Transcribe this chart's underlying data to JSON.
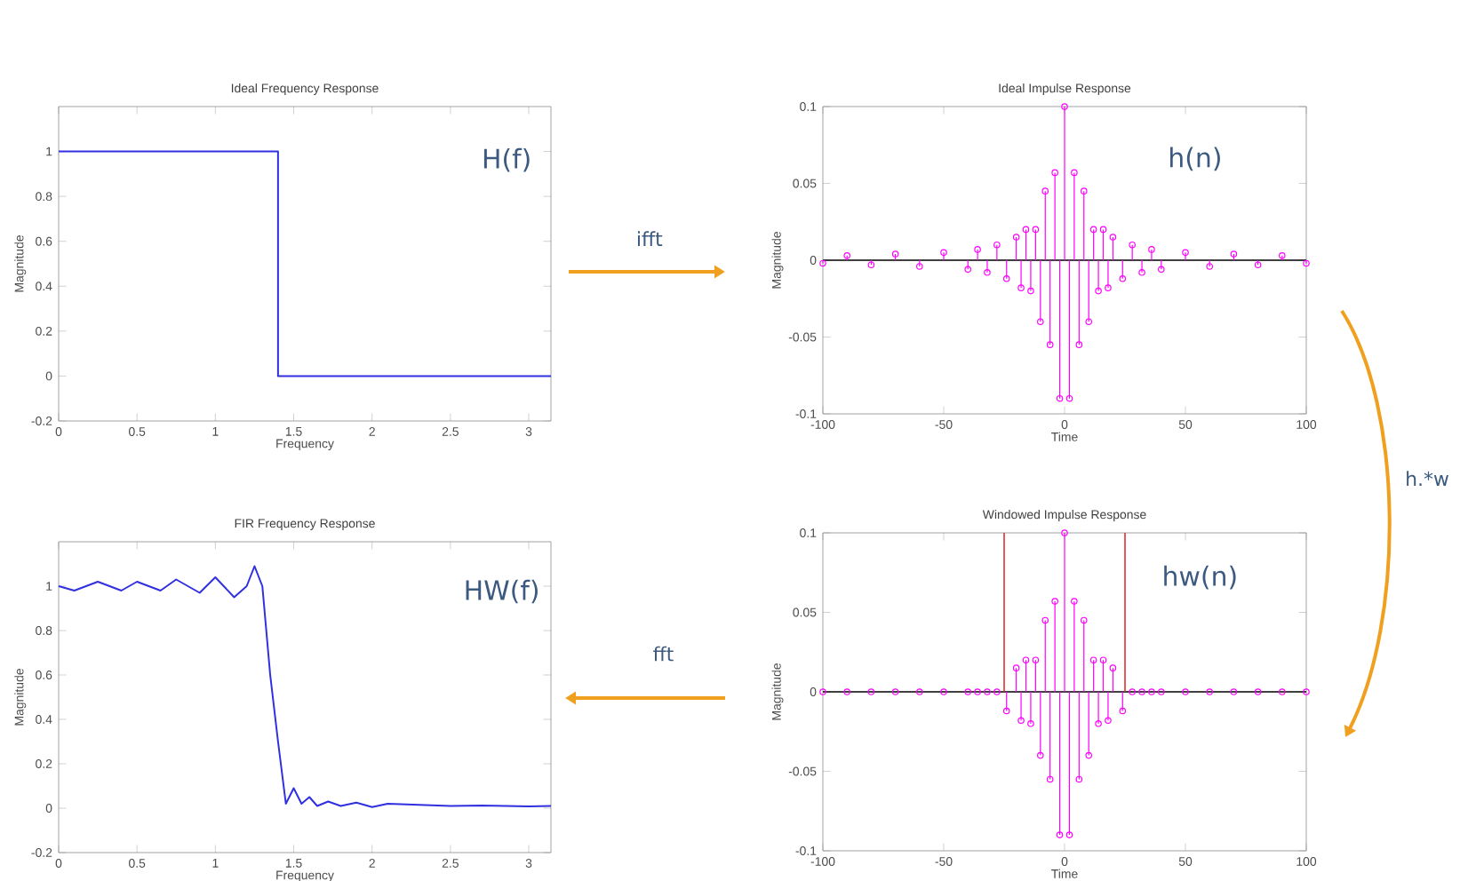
{
  "chart_data": [
    {
      "type": "line",
      "title": "Ideal Frequency Response",
      "xlabel": "Frequency",
      "ylabel": "Magnitude",
      "xlim": [
        0,
        3.1416
      ],
      "ylim": [
        -0.2,
        1.2
      ],
      "xticks": [
        0,
        0.5,
        1,
        1.5,
        2,
        2.5,
        3
      ],
      "yticks": [
        -0.2,
        0,
        0.2,
        0.4,
        0.6,
        0.8,
        1
      ],
      "series": [
        {
          "color": "#3030e0",
          "x": [
            0,
            1.4,
            1.4,
            3.1416
          ],
          "values": [
            1,
            1,
            0,
            0
          ]
        }
      ],
      "annotations": [
        "H(f)",
        "ifft"
      ]
    },
    {
      "type": "lollipop",
      "marker": "circle",
      "title": "Ideal Impulse Response",
      "xlabel": "Time",
      "ylabel": "Magnitude",
      "xlim": [
        -100,
        100
      ],
      "ylim": [
        -0.1,
        0.1
      ],
      "xticks": [
        -100,
        -50,
        0,
        50,
        100
      ],
      "yticks": [
        -0.1,
        -0.05,
        0,
        0.05,
        0.1
      ],
      "series": [
        {
          "color": "#ff00ff",
          "x": [
            -100,
            -90,
            -80,
            -70,
            -60,
            -50,
            -40,
            -36,
            -32,
            -28,
            -24,
            -20,
            -18,
            -16,
            -14,
            -12,
            -10,
            -8,
            -6,
            -4,
            -2,
            0,
            2,
            4,
            6,
            8,
            10,
            12,
            14,
            16,
            18,
            20,
            24,
            28,
            32,
            36,
            40,
            50,
            60,
            70,
            80,
            90,
            100
          ],
          "values": [
            -0.002,
            0.003,
            -0.003,
            0.004,
            -0.004,
            0.005,
            -0.006,
            0.007,
            -0.008,
            0.01,
            -0.012,
            0.015,
            -0.018,
            0.02,
            -0.02,
            0.02,
            -0.04,
            0.045,
            -0.055,
            0.057,
            -0.09,
            0.1,
            -0.09,
            0.057,
            -0.055,
            0.045,
            -0.04,
            0.02,
            -0.02,
            0.02,
            -0.018,
            0.015,
            -0.012,
            0.01,
            -0.008,
            0.007,
            -0.006,
            0.005,
            -0.004,
            0.004,
            -0.003,
            0.003,
            -0.002
          ]
        }
      ],
      "ref_lines": [
        {
          "axis": "y",
          "value": 0,
          "color": "#000000"
        }
      ],
      "annotations": [
        "h(n)",
        "h.*w"
      ]
    },
    {
      "type": "line",
      "title": "FIR Frequency Response",
      "xlabel": "Frequency",
      "ylabel": "Magnitude",
      "xlim": [
        0,
        3.1416
      ],
      "ylim": [
        -0.2,
        1.2
      ],
      "xticks": [
        0,
        0.5,
        1,
        1.5,
        2,
        2.5,
        3
      ],
      "yticks": [
        -0.2,
        0,
        0.2,
        0.4,
        0.6,
        0.8,
        1
      ],
      "series": [
        {
          "color": "#3030e0",
          "x": [
            0,
            0.1,
            0.25,
            0.4,
            0.5,
            0.65,
            0.75,
            0.9,
            1.0,
            1.12,
            1.2,
            1.25,
            1.3,
            1.35,
            1.4,
            1.45,
            1.5,
            1.55,
            1.6,
            1.65,
            1.72,
            1.8,
            1.9,
            2.0,
            2.1,
            2.3,
            2.5,
            2.7,
            3.0,
            3.1416
          ],
          "values": [
            1.0,
            0.98,
            1.02,
            0.98,
            1.02,
            0.98,
            1.03,
            0.97,
            1.04,
            0.95,
            1.0,
            1.09,
            1.0,
            0.6,
            0.3,
            0.02,
            0.09,
            0.02,
            0.05,
            0.01,
            0.03,
            0.01,
            0.025,
            0.005,
            0.02,
            0.015,
            0.01,
            0.012,
            0.008,
            0.01
          ]
        }
      ],
      "annotations": [
        "HW(f)"
      ]
    },
    {
      "type": "lollipop",
      "marker": "circle",
      "title": "Windowed Impulse Response",
      "xlabel": "Time",
      "ylabel": "Magnitude",
      "xlim": [
        -100,
        100
      ],
      "ylim": [
        -0.1,
        0.1
      ],
      "xticks": [
        -100,
        -50,
        0,
        50,
        100
      ],
      "yticks": [
        -0.1,
        -0.05,
        0,
        0.05,
        0.1
      ],
      "series": [
        {
          "color": "#ff00ff",
          "x": [
            -100,
            -90,
            -80,
            -70,
            -60,
            -50,
            -40,
            -36,
            -32,
            -28,
            -24,
            -20,
            -18,
            -16,
            -14,
            -12,
            -10,
            -8,
            -6,
            -4,
            -2,
            0,
            2,
            4,
            6,
            8,
            10,
            12,
            14,
            16,
            18,
            20,
            24,
            28,
            32,
            36,
            40,
            50,
            60,
            70,
            80,
            90,
            100
          ],
          "values": [
            0,
            0,
            0,
            0,
            0,
            0,
            0,
            0,
            0,
            0,
            -0.012,
            0.015,
            -0.018,
            0.02,
            -0.02,
            0.02,
            -0.04,
            0.045,
            -0.055,
            0.057,
            -0.09,
            0.1,
            -0.09,
            0.057,
            -0.055,
            0.045,
            -0.04,
            0.02,
            -0.02,
            0.02,
            -0.018,
            0.015,
            -0.012,
            0,
            0,
            0,
            0,
            0,
            0,
            0,
            0,
            0,
            0
          ]
        }
      ],
      "ref_lines": [
        {
          "axis": "y",
          "value": 0,
          "color": "#000000"
        },
        {
          "axis": "x",
          "value": -25,
          "color": "#e03030"
        },
        {
          "axis": "x",
          "value": 25,
          "color": "#e03030"
        }
      ],
      "annotations": [
        "hw(n)",
        "fft"
      ]
    }
  ]
}
